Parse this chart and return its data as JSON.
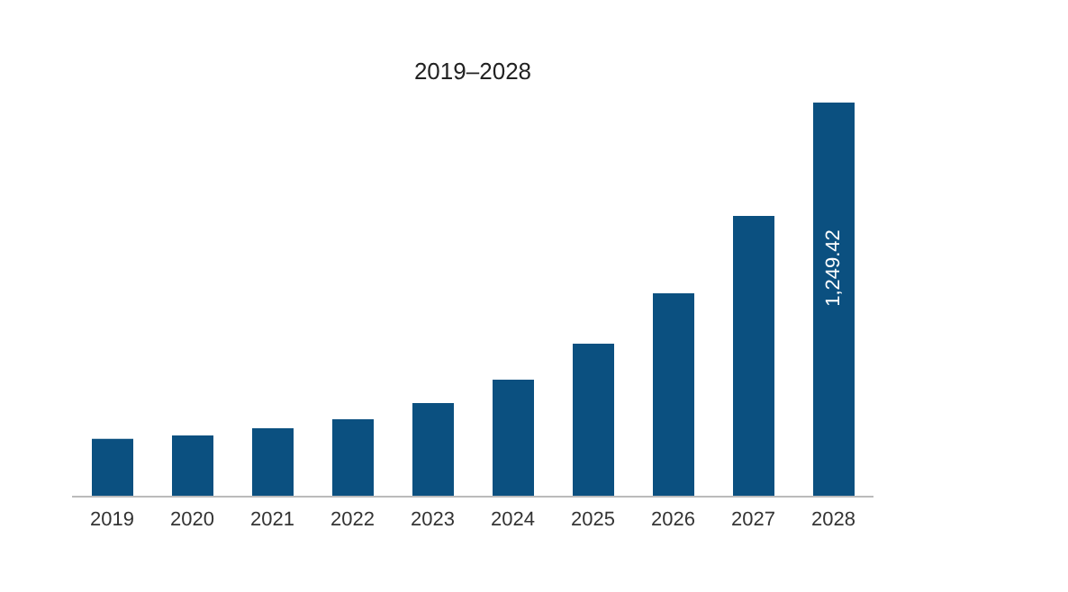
{
  "chart_data": {
    "type": "bar",
    "title": "2019–2028",
    "categories": [
      "2019",
      "2020",
      "2021",
      "2022",
      "2023",
      "2024",
      "2025",
      "2026",
      "2027",
      "2028"
    ],
    "values": [
      183,
      194,
      217,
      245,
      297,
      371,
      485,
      645,
      890,
      1249.42
    ],
    "value_labels": [
      null,
      null,
      null,
      null,
      null,
      null,
      null,
      null,
      null,
      "1,249.42"
    ],
    "color": "#0b5080",
    "grid": false,
    "legend": false
  }
}
